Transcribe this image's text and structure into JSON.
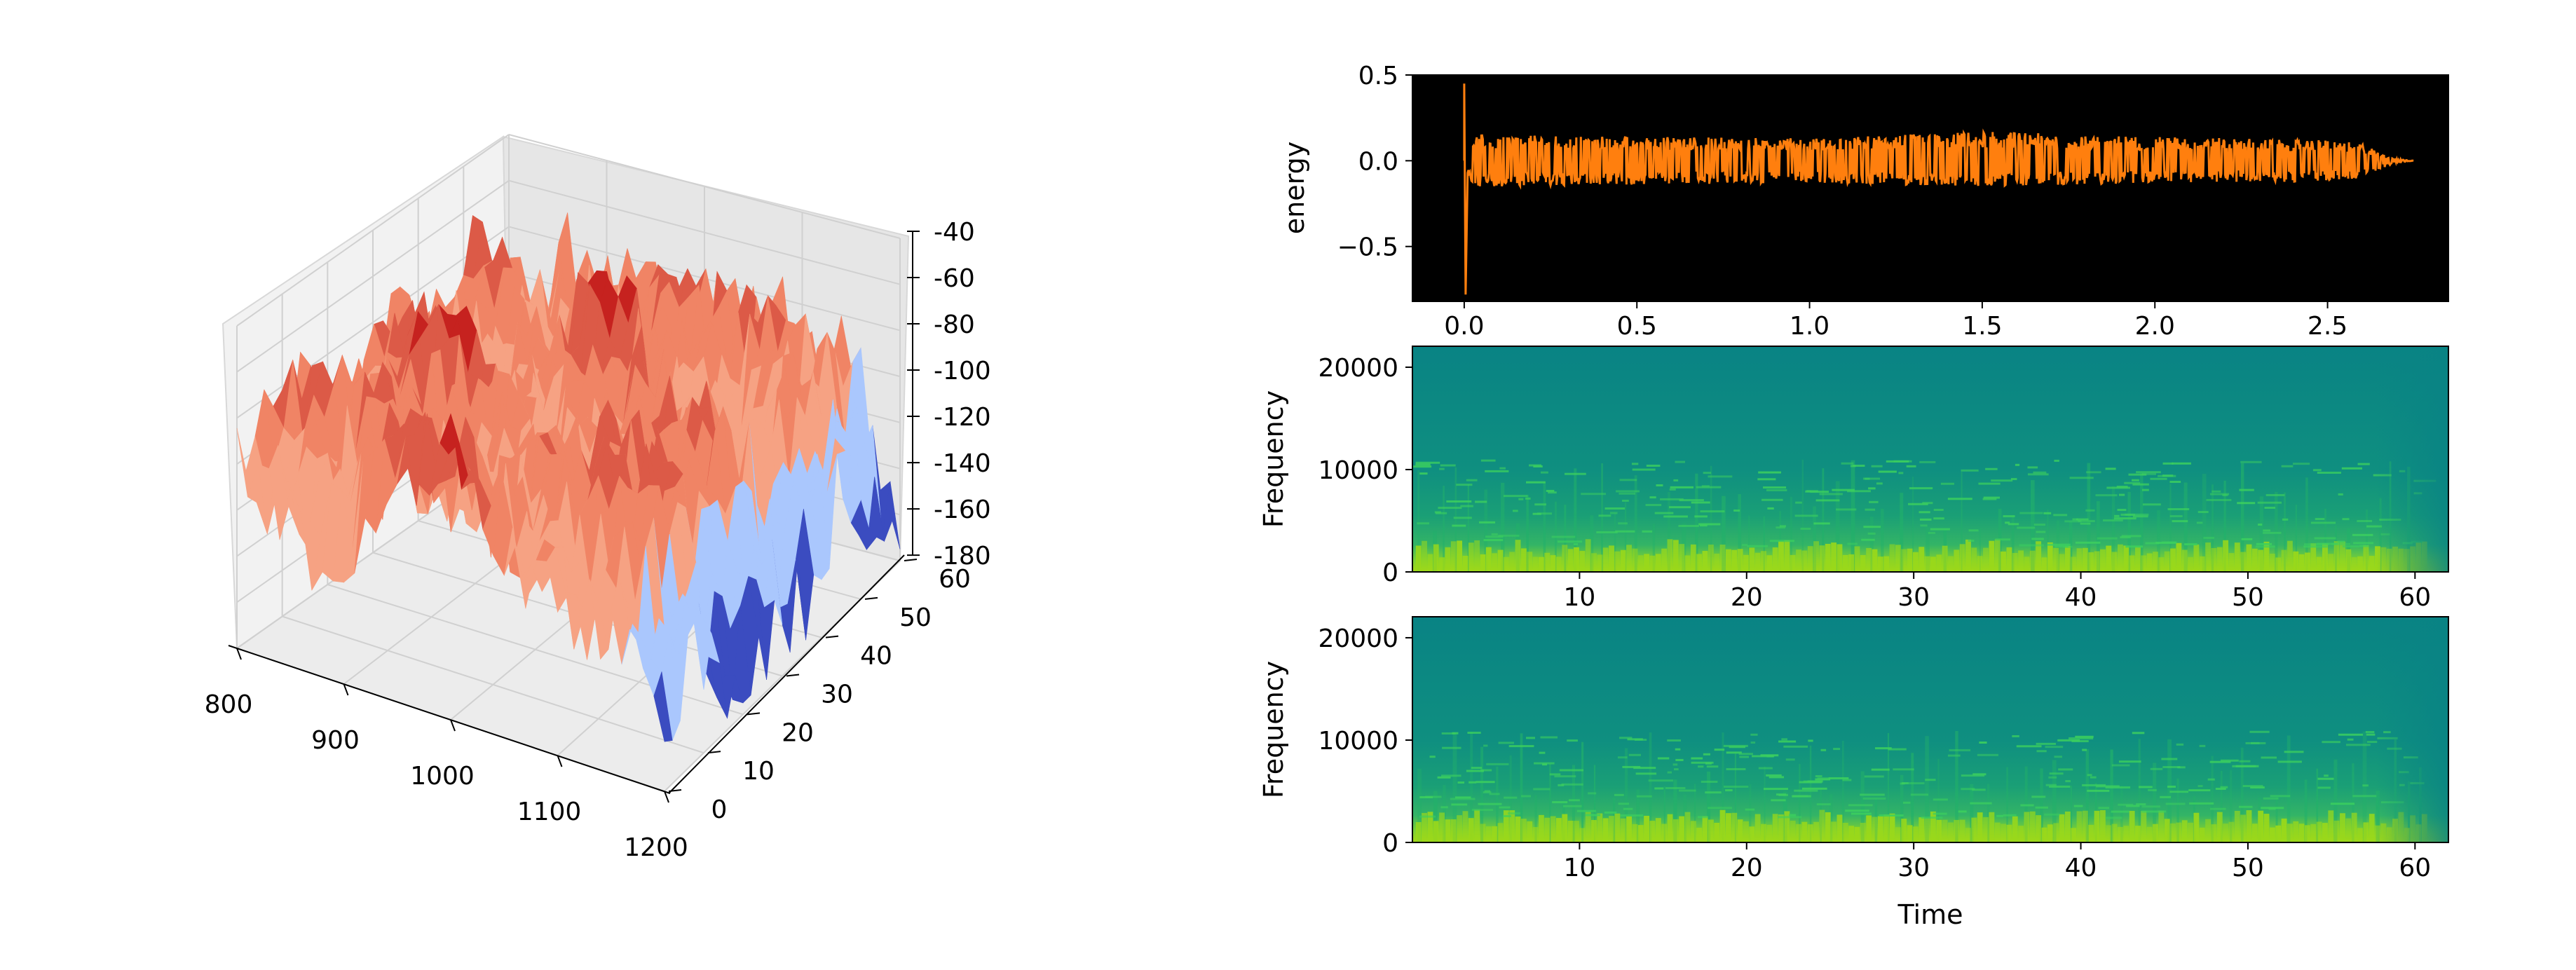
{
  "colors": {
    "surface_high": "#c6221f",
    "surface_mid": "#f6a283",
    "surface_low": "#3b4cc0",
    "surface_light_blue": "#aac7fd",
    "waveform": "#ff7f0e",
    "waveform_background": "#000000",
    "spectrogram_base": "#0b8585",
    "spectrogram_mid": "#22b06a",
    "spectrogram_high": "#9ad81a"
  },
  "chart_data": [
    {
      "type": "surface",
      "xlabel": "",
      "ylabel": "",
      "zlabel": "",
      "xlim": [
        800,
        1200
      ],
      "ylim": [
        0,
        60
      ],
      "zlim": [
        -180,
        -40
      ],
      "x_ticks": [
        "800",
        "900",
        "1000",
        "1100",
        "1200"
      ],
      "y_ticks": [
        "0",
        "10",
        "20",
        "30",
        "40",
        "50",
        "60"
      ],
      "z_ticks": [
        "-40",
        "-60",
        "-80",
        "-100",
        "-120",
        "-140",
        "-160",
        "-180"
      ],
      "colormap": "coolwarm",
      "z_typical_range": [
        -140,
        -50
      ],
      "z_low_region": "x approx. 1150-1200, z approx. -170 to -120"
    },
    {
      "type": "line",
      "xlabel": "",
      "ylabel": "energy",
      "xlim": [
        -0.15,
        2.85
      ],
      "ylim": [
        -0.82,
        0.5
      ],
      "x_ticks": [
        "0.0",
        "0.5",
        "1.0",
        "1.5",
        "2.0",
        "2.5"
      ],
      "y_ticks": [
        "0.5",
        "0.0",
        "−0.5"
      ],
      "series": [
        {
          "x": [
            0.0,
            0.01,
            0.03,
            0.5,
            1.0,
            1.5,
            2.0,
            2.5,
            2.6,
            2.65,
            2.7,
            2.75
          ],
          "y_max": [
            0.45,
            0.12,
            0.15,
            0.14,
            0.13,
            0.17,
            0.14,
            0.12,
            0.1,
            0.05,
            0.01,
            0.0
          ],
          "y_min": [
            -0.78,
            -0.1,
            -0.15,
            -0.14,
            -0.13,
            -0.15,
            -0.13,
            -0.12,
            -0.1,
            -0.05,
            -0.01,
            0.0
          ]
        }
      ]
    },
    {
      "type": "heatmap",
      "xlabel": "",
      "ylabel": "Frequency",
      "xlim": [
        0,
        62
      ],
      "ylim": [
        0,
        22050
      ],
      "x_ticks": [
        "10",
        "20",
        "30",
        "40",
        "50",
        "60"
      ],
      "y_ticks": [
        "20000",
        "10000",
        "0"
      ],
      "energy_profile": "strongest below 2000 Hz, moderate up to 10000 Hz, weak above; fades near t = 60"
    },
    {
      "type": "heatmap",
      "xlabel": "Time",
      "ylabel": "Frequency",
      "xlim": [
        0,
        62
      ],
      "ylim": [
        0,
        22050
      ],
      "x_ticks": [
        "10",
        "20",
        "30",
        "40",
        "50",
        "60"
      ],
      "y_ticks": [
        "20000",
        "10000",
        "0"
      ],
      "energy_profile": "strongest below 2000 Hz, moderate up to 10000 Hz, weak above; fades near t = 60"
    }
  ]
}
